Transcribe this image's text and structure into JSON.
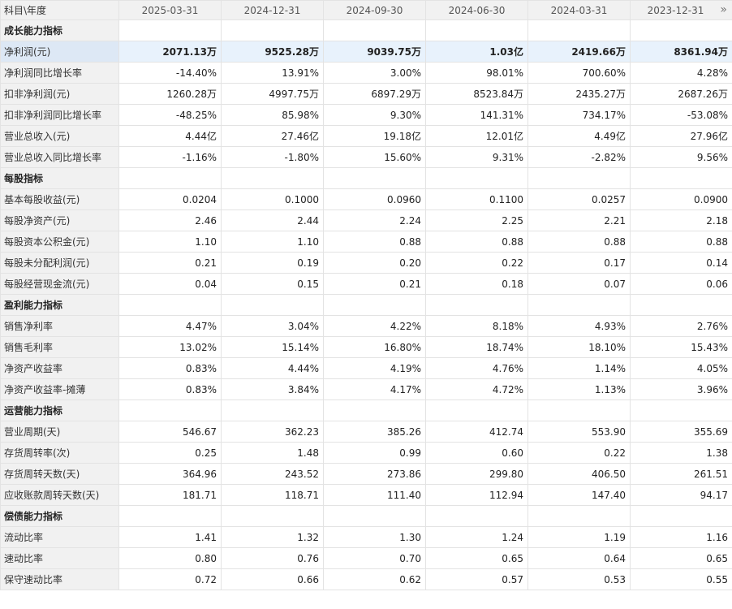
{
  "header": {
    "label": "科目\\年度",
    "periods": [
      "2025-03-31",
      "2024-12-31",
      "2024-09-30",
      "2024-06-30",
      "2024-03-31",
      "2023-12-31"
    ],
    "more_icon": "»"
  },
  "sections": [
    {
      "title": "成长能力指标",
      "rows": [
        {
          "label": "净利润(元)",
          "highlight": true,
          "values": [
            "2071.13万",
            "9525.28万",
            "9039.75万",
            "1.03亿",
            "2419.66万",
            "8361.94万"
          ]
        },
        {
          "label": "净利润同比增长率",
          "values": [
            "-14.40%",
            "13.91%",
            "3.00%",
            "98.01%",
            "700.60%",
            "4.28%"
          ]
        },
        {
          "label": "扣非净利润(元)",
          "values": [
            "1260.28万",
            "4997.75万",
            "6897.29万",
            "8523.84万",
            "2435.27万",
            "2687.26万"
          ]
        },
        {
          "label": "扣非净利润同比增长率",
          "values": [
            "-48.25%",
            "85.98%",
            "9.30%",
            "141.31%",
            "734.17%",
            "-53.08%"
          ]
        },
        {
          "label": "营业总收入(元)",
          "values": [
            "4.44亿",
            "27.46亿",
            "19.18亿",
            "12.01亿",
            "4.49亿",
            "27.96亿"
          ]
        },
        {
          "label": "营业总收入同比增长率",
          "values": [
            "-1.16%",
            "-1.80%",
            "15.60%",
            "9.31%",
            "-2.82%",
            "9.56%"
          ]
        }
      ]
    },
    {
      "title": "每股指标",
      "rows": [
        {
          "label": "基本每股收益(元)",
          "values": [
            "0.0204",
            "0.1000",
            "0.0960",
            "0.1100",
            "0.0257",
            "0.0900"
          ]
        },
        {
          "label": "每股净资产(元)",
          "values": [
            "2.46",
            "2.44",
            "2.24",
            "2.25",
            "2.21",
            "2.18"
          ]
        },
        {
          "label": "每股资本公积金(元)",
          "values": [
            "1.10",
            "1.10",
            "0.88",
            "0.88",
            "0.88",
            "0.88"
          ]
        },
        {
          "label": "每股未分配利润(元)",
          "values": [
            "0.21",
            "0.19",
            "0.20",
            "0.22",
            "0.17",
            "0.14"
          ]
        },
        {
          "label": "每股经营现金流(元)",
          "values": [
            "0.04",
            "0.15",
            "0.21",
            "0.18",
            "0.07",
            "0.06"
          ]
        }
      ]
    },
    {
      "title": "盈利能力指标",
      "rows": [
        {
          "label": "销售净利率",
          "values": [
            "4.47%",
            "3.04%",
            "4.22%",
            "8.18%",
            "4.93%",
            "2.76%"
          ]
        },
        {
          "label": "销售毛利率",
          "values": [
            "13.02%",
            "15.14%",
            "16.80%",
            "18.74%",
            "18.10%",
            "15.43%"
          ]
        },
        {
          "label": "净资产收益率",
          "values": [
            "0.83%",
            "4.44%",
            "4.19%",
            "4.76%",
            "1.14%",
            "4.05%"
          ]
        },
        {
          "label": "净资产收益率-摊薄",
          "values": [
            "0.83%",
            "3.84%",
            "4.17%",
            "4.72%",
            "1.13%",
            "3.96%"
          ]
        }
      ]
    },
    {
      "title": "运营能力指标",
      "rows": [
        {
          "label": "营业周期(天)",
          "values": [
            "546.67",
            "362.23",
            "385.26",
            "412.74",
            "553.90",
            "355.69"
          ]
        },
        {
          "label": "存货周转率(次)",
          "values": [
            "0.25",
            "1.48",
            "0.99",
            "0.60",
            "0.22",
            "1.38"
          ]
        },
        {
          "label": "存货周转天数(天)",
          "values": [
            "364.96",
            "243.52",
            "273.86",
            "299.80",
            "406.50",
            "261.51"
          ]
        },
        {
          "label": "应收账款周转天数(天)",
          "values": [
            "181.71",
            "118.71",
            "111.40",
            "112.94",
            "147.40",
            "94.17"
          ]
        }
      ]
    },
    {
      "title": "偿债能力指标",
      "rows": [
        {
          "label": "流动比率",
          "values": [
            "1.41",
            "1.32",
            "1.30",
            "1.24",
            "1.19",
            "1.16"
          ]
        },
        {
          "label": "速动比率",
          "values": [
            "0.80",
            "0.76",
            "0.70",
            "0.65",
            "0.64",
            "0.65"
          ]
        },
        {
          "label": "保守速动比率",
          "values": [
            "0.72",
            "0.66",
            "0.62",
            "0.57",
            "0.53",
            "0.55"
          ]
        }
      ]
    }
  ]
}
